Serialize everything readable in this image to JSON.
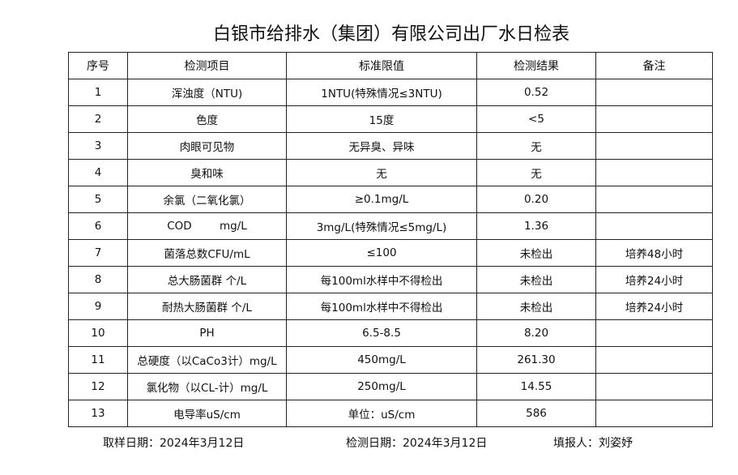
{
  "title": "白银市给排水（集团）有限公司出厂水日检表",
  "headers": [
    "序号",
    "检测项目",
    "标准限值",
    "检测结果",
    "备注"
  ],
  "rows": [
    [
      "1",
      "浑浊度（NTU)",
      "1NTU(特殊情况≤3NTU)",
      "0.52",
      ""
    ],
    [
      "2",
      "色度",
      "15度",
      "<5",
      ""
    ],
    [
      "3",
      "肉眼可见物",
      "无异臭、异味",
      "无",
      ""
    ],
    [
      "4",
      "臭和味",
      "无",
      "无",
      ""
    ],
    [
      "5",
      "余氯（二氧化氯）",
      "≥0.1mg/L",
      "0.20",
      ""
    ],
    [
      "6",
      "COD        mg/L",
      "3mg/L(特殊情况≤5mg/L)",
      "1.36",
      ""
    ],
    [
      "7",
      "菌落总数CFU/mL",
      "≤100",
      "未检出",
      "培养48小时"
    ],
    [
      "8",
      "总大肠菌群 个/L",
      "每100ml水样中不得检出",
      "未检出",
      "培养24小时"
    ],
    [
      "9",
      "耐热大肠菌群 个/L",
      "每100ml水样中不得检出",
      "未检出",
      "培养24小时"
    ],
    [
      "10",
      "PH",
      "6.5-8.5",
      "8.20",
      ""
    ],
    [
      "11",
      "总硬度（以CaCo3计）mg/L",
      "450mg/L",
      "261.30",
      ""
    ],
    [
      "12",
      "氯化物（以CL-计）mg/L",
      "250mg/L",
      "14.55",
      ""
    ],
    [
      "13",
      "电导率uS/cm",
      "单位：uS/cm",
      "586",
      ""
    ]
  ],
  "footer": {
    "sample_date": "取样日期：2024年3月12日",
    "test_date": "检测日期：2024年3月12日",
    "reporter": "填报人：刘姿妤"
  }
}
